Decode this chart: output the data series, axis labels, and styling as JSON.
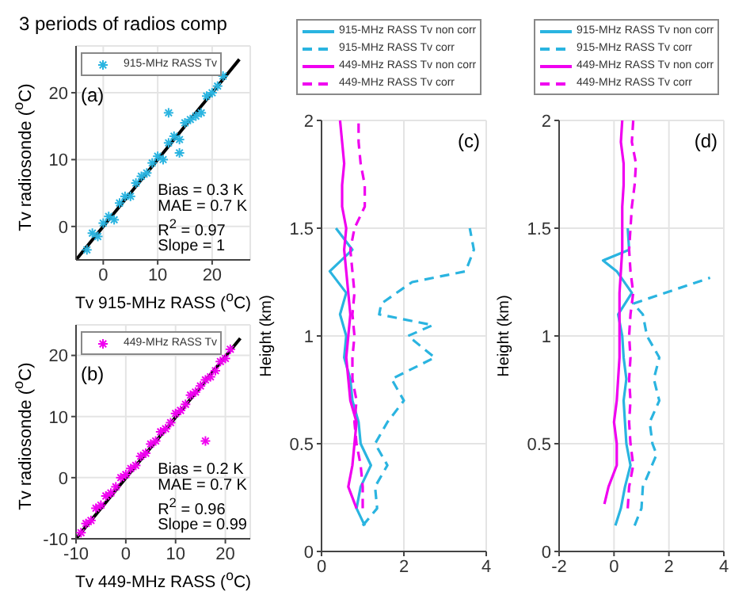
{
  "chart_data": [
    {
      "type": "scatter",
      "title": "3 periods of radios comp",
      "xlabel": "Tv 915-MHz RASS ($^{o}$C)",
      "ylabel": "Tv radiosonde ($^{o}$C)",
      "annotations": [
        "(a)",
        "Bias = 0.3 K",
        "MAE = 0.7 K",
        "R$^{2}$ = 0.97",
        "Slope = 1"
      ],
      "xlim": [
        -5,
        27
      ],
      "ylim": [
        -5,
        27
      ],
      "xticks": [
        0,
        10,
        20
      ],
      "yticks": [
        0,
        10,
        20
      ],
      "grid": true,
      "legend": "top",
      "series": [
        {
          "name": "915-MHz RASS Tv",
          "color": "#2ab4e0",
          "type": "scatter",
          "marker": "cross",
          "x": [
            -3,
            -2,
            -1,
            0,
            1,
            2,
            3,
            4,
            5,
            6,
            7,
            8,
            9,
            10,
            11,
            12,
            13,
            14,
            15,
            16,
            17,
            18,
            19,
            20,
            21,
            22,
            12,
            14
          ],
          "values": [
            -3.5,
            -1,
            -1.5,
            0.5,
            1.5,
            1,
            3.5,
            4.5,
            4.5,
            6.5,
            7.5,
            8,
            9.5,
            10.5,
            10,
            12.5,
            13.5,
            13,
            15.5,
            16,
            16.5,
            17,
            19.5,
            20,
            21,
            22.5,
            17,
            11
          ]
        },
        {
          "type": "line",
          "color": "#000000",
          "x": [
            -5,
            25
          ],
          "values": [
            -5,
            25
          ]
        }
      ]
    },
    {
      "type": "scatter",
      "xlabel": "Tv 449-MHz RASS ($^{o}$C)",
      "ylabel": "Tv radiosonde ($^{o}$C)",
      "annotations": [
        "(b)",
        "Bias = 0.2 K",
        "MAE = 0.7 K",
        "R$^{2}$ = 0.96",
        "Slope = 0.99"
      ],
      "xlim": [
        -10,
        25
      ],
      "ylim": [
        -10,
        25
      ],
      "xticks": [
        -10,
        0,
        10,
        20
      ],
      "yticks": [
        -10,
        0,
        10,
        20
      ],
      "grid": true,
      "legend": "top",
      "series": [
        {
          "name": "449-MHz RASS Tv",
          "color": "#f000f0",
          "type": "scatter",
          "marker": "cross",
          "x": [
            -9,
            -8,
            -7,
            -6,
            -5,
            -4,
            -3,
            -2,
            -1,
            0,
            1,
            2,
            3,
            4,
            5,
            6,
            7,
            8,
            9,
            10,
            11,
            12,
            13,
            14,
            15,
            16,
            17,
            18,
            19,
            20,
            21,
            16
          ],
          "values": [
            -9,
            -7.5,
            -7,
            -5,
            -4.5,
            -3,
            -2.5,
            -1.5,
            0,
            0.5,
            1.5,
            2,
            3.5,
            4,
            5.5,
            6,
            7.5,
            8,
            9,
            10.5,
            11,
            12,
            13.5,
            14,
            15,
            16,
            16.5,
            17.5,
            19,
            19.5,
            21,
            6
          ]
        },
        {
          "type": "line",
          "color": "#000000",
          "x": [
            -10,
            23
          ],
          "values": [
            -10,
            22.8
          ]
        }
      ]
    },
    {
      "type": "line",
      "ylabel": "Height (km)",
      "annotations": [
        "(c)"
      ],
      "xlim": [
        0,
        4
      ],
      "ylim": [
        0,
        2
      ],
      "xticks": [
        0,
        2,
        4
      ],
      "yticks": [
        0,
        0.5,
        1,
        1.5,
        2
      ],
      "grid": true,
      "legend": "top",
      "series": [
        {
          "name": "915-MHz RASS Tv non corr",
          "color": "#2ab4e0",
          "line_style": "solid",
          "x": [
            1.05,
            0.85,
            0.95,
            1.2,
            0.95,
            0.9,
            0.75,
            0.7,
            0.55,
            0.6,
            0.45,
            0.6,
            0.2,
            0.75,
            0.35
          ],
          "values": [
            0.12,
            0.2,
            0.3,
            0.4,
            0.5,
            0.6,
            0.7,
            0.8,
            0.9,
            1.0,
            1.1,
            1.2,
            1.3,
            1.4,
            1.5
          ]
        },
        {
          "name": "915-MHz RASS Tv corr",
          "color": "#2ab4e0",
          "line_style": "dashed",
          "x": [
            1.0,
            1.35,
            1.3,
            1.6,
            1.3,
            1.6,
            2.0,
            1.7,
            2.75,
            2.1,
            2.7,
            1.4,
            1.45,
            2.2,
            3.5,
            3.7,
            3.6
          ],
          "values": [
            0.12,
            0.2,
            0.3,
            0.4,
            0.5,
            0.6,
            0.7,
            0.8,
            0.9,
            1.0,
            1.05,
            1.1,
            1.15,
            1.25,
            1.3,
            1.4,
            1.5
          ]
        },
        {
          "name": "449-MHz RASS Tv non corr",
          "color": "#f000f0",
          "line_style": "solid",
          "x": [
            0.85,
            0.65,
            0.75,
            0.8,
            0.85,
            0.7,
            0.65,
            0.6,
            0.65,
            0.7,
            0.65,
            0.6,
            0.55,
            0.6,
            0.5,
            0.5,
            0.55,
            0.5,
            0.45
          ],
          "values": [
            0.2,
            0.3,
            0.4,
            0.5,
            0.6,
            0.7,
            0.8,
            0.9,
            1.0,
            1.1,
            1.2,
            1.3,
            1.4,
            1.5,
            1.6,
            1.7,
            1.8,
            1.9,
            2.0
          ]
        },
        {
          "name": "449-MHz RASS Tv corr",
          "color": "#f000f0",
          "line_style": "dashed",
          "x": [
            1.0,
            1.0,
            0.95,
            0.85,
            0.8,
            0.85,
            0.75,
            0.75,
            0.8,
            0.75,
            0.8,
            0.75,
            0.7,
            0.8,
            1.05,
            1.05,
            0.95,
            0.9,
            0.9
          ],
          "values": [
            0.2,
            0.3,
            0.4,
            0.5,
            0.6,
            0.7,
            0.8,
            0.9,
            1.0,
            1.1,
            1.2,
            1.3,
            1.4,
            1.5,
            1.6,
            1.7,
            1.8,
            1.9,
            2.0
          ]
        }
      ]
    },
    {
      "type": "line",
      "ylabel": "Height (km)",
      "annotations": [
        "(d)"
      ],
      "xlim": [
        -2,
        4
      ],
      "ylim": [
        0,
        2
      ],
      "xticks": [
        -2,
        0,
        2,
        4
      ],
      "yticks": [
        0,
        0.5,
        1,
        1.5,
        2
      ],
      "grid": true,
      "legend": "top",
      "series": [
        {
          "name": "915-MHz RASS Tv non corr",
          "color": "#2ab4e0",
          "line_style": "solid",
          "x": [
            0.05,
            0.25,
            0.4,
            0.6,
            0.45,
            0.4,
            0.35,
            0.45,
            0.35,
            0.3,
            0.15,
            0.65,
            0.1,
            -0.4,
            0.55,
            0.5
          ],
          "values": [
            0.12,
            0.2,
            0.3,
            0.4,
            0.5,
            0.6,
            0.7,
            0.8,
            0.9,
            1.0,
            1.1,
            1.2,
            1.3,
            1.35,
            1.4,
            1.5
          ]
        },
        {
          "name": "915-MHz RASS Tv corr",
          "color": "#2ab4e0",
          "line_style": "dashed",
          "x": [
            0.75,
            1.0,
            1.05,
            1.55,
            1.4,
            1.3,
            1.65,
            1.45,
            1.65,
            1.2,
            1.05,
            0.7,
            3.5
          ],
          "values": [
            0.12,
            0.2,
            0.3,
            0.45,
            0.5,
            0.6,
            0.7,
            0.8,
            0.9,
            1.0,
            1.1,
            1.15,
            1.27
          ]
        },
        {
          "name": "449-MHz RASS Tv non corr",
          "color": "#f000f0",
          "line_style": "solid",
          "x": [
            -0.35,
            -0.2,
            0.1,
            0.1,
            0.0,
            0.1,
            0.15,
            0.2,
            0.2,
            0.2,
            0.2,
            0.25,
            0.3,
            0.3,
            0.3,
            0.35,
            0.35,
            0.25,
            0.3
          ],
          "values": [
            0.22,
            0.3,
            0.4,
            0.5,
            0.6,
            0.7,
            0.8,
            0.9,
            1.0,
            1.1,
            1.2,
            1.3,
            1.4,
            1.5,
            1.6,
            1.7,
            1.8,
            1.9,
            2.0
          ]
        },
        {
          "name": "449-MHz RASS Tv corr",
          "color": "#f000f0",
          "line_style": "dashed",
          "x": [
            0.5,
            0.55,
            0.7,
            0.6,
            0.55,
            0.6,
            0.55,
            0.6,
            0.55,
            0.6,
            0.7,
            0.6,
            0.55,
            0.6,
            0.65,
            0.75,
            0.8,
            0.65,
            0.7
          ],
          "values": [
            0.2,
            0.3,
            0.4,
            0.5,
            0.6,
            0.7,
            0.8,
            0.9,
            1.0,
            1.1,
            1.2,
            1.3,
            1.4,
            1.5,
            1.6,
            1.7,
            1.8,
            1.9,
            2.0
          ]
        }
      ]
    }
  ]
}
